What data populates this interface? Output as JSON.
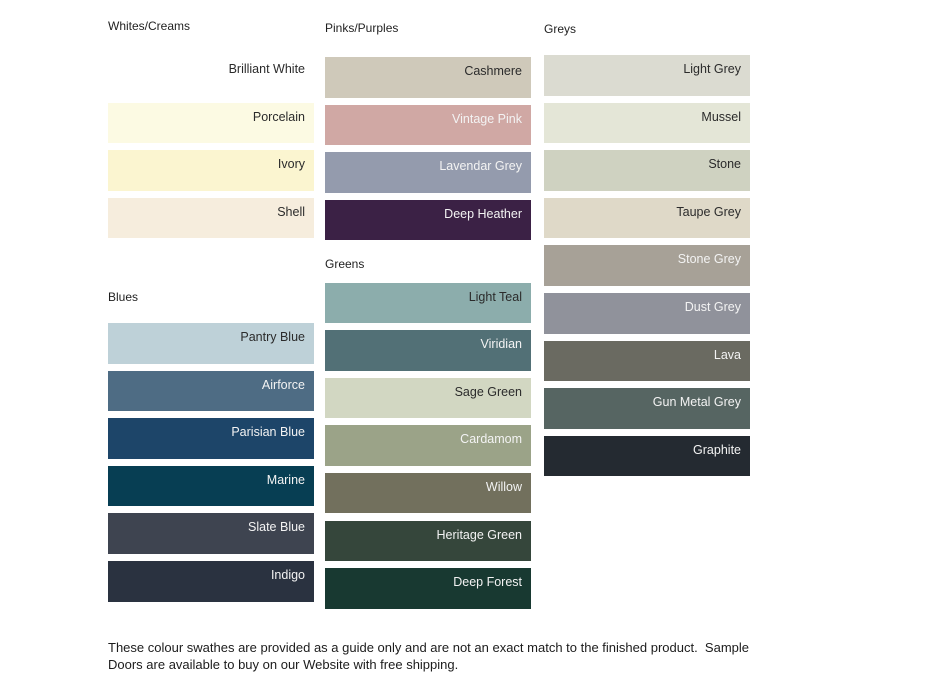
{
  "page": {
    "background": "#ffffff",
    "dark_label_color": "#2b2b2b",
    "light_label_color": "#f3f3f3"
  },
  "footer": {
    "line1": "These colour swathes are provided as a guide only and are not an exact match to the finished product.  Sample",
    "line2": "Doors are available to buy on our Website with free shipping."
  },
  "sections": [
    {
      "id": "whites-creams",
      "title": "Whites/Creams",
      "column": 1,
      "swatches": [
        {
          "name": "Brilliant White",
          "color": "#ffffff",
          "text": "dark"
        },
        {
          "name": "Porcelain",
          "color": "#fcfae3",
          "text": "dark"
        },
        {
          "name": "Ivory",
          "color": "#fbf5d0",
          "text": "dark"
        },
        {
          "name": "Shell",
          "color": "#f6eddd",
          "text": "dark"
        }
      ]
    },
    {
      "id": "blues",
      "title": "Blues",
      "column": 1,
      "swatches": [
        {
          "name": "Pantry Blue",
          "color": "#bed1d8",
          "text": "dark"
        },
        {
          "name": "Airforce",
          "color": "#4e6c84",
          "text": "light"
        },
        {
          "name": "Parisian Blue",
          "color": "#1d4569",
          "text": "light"
        },
        {
          "name": "Marine",
          "color": "#073e53",
          "text": "light"
        },
        {
          "name": "Slate Blue",
          "color": "#3e4450",
          "text": "light"
        },
        {
          "name": "Indigo",
          "color": "#2a3240",
          "text": "light"
        }
      ]
    },
    {
      "id": "pinks-purples",
      "title": "Pinks/Purples",
      "column": 2,
      "swatches": [
        {
          "name": "Cashmere",
          "color": "#cfc9ba",
          "text": "dark"
        },
        {
          "name": "Vintage Pink",
          "color": "#d0a8a4",
          "text": "light"
        },
        {
          "name": "Lavendar Grey",
          "color": "#949bad",
          "text": "light"
        },
        {
          "name": "Deep Heather",
          "color": "#3b2145",
          "text": "light"
        }
      ]
    },
    {
      "id": "greens",
      "title": "Greens",
      "column": 2,
      "swatches": [
        {
          "name": "Light Teal",
          "color": "#8cadac",
          "text": "dark"
        },
        {
          "name": "Viridian",
          "color": "#527076",
          "text": "light"
        },
        {
          "name": "Sage Green",
          "color": "#d2d7c2",
          "text": "dark"
        },
        {
          "name": "Cardamom",
          "color": "#9ba388",
          "text": "light"
        },
        {
          "name": "Willow",
          "color": "#72705d",
          "text": "light"
        },
        {
          "name": "Heritage Green",
          "color": "#35463b",
          "text": "light"
        },
        {
          "name": "Deep Forest",
          "color": "#183931",
          "text": "light"
        }
      ]
    },
    {
      "id": "greys",
      "title": "Greys",
      "column": 3,
      "swatches": [
        {
          "name": "Light Grey",
          "color": "#dbdbd1",
          "text": "dark"
        },
        {
          "name": "Mussel",
          "color": "#e4e6d7",
          "text": "dark"
        },
        {
          "name": "Stone",
          "color": "#cfd2c1",
          "text": "dark"
        },
        {
          "name": "Taupe Grey",
          "color": "#dfd9c8",
          "text": "dark"
        },
        {
          "name": "Stone Grey",
          "color": "#a7a197",
          "text": "light"
        },
        {
          "name": "Dust Grey",
          "color": "#90929b",
          "text": "light"
        },
        {
          "name": "Lava",
          "color": "#6a6a61",
          "text": "light"
        },
        {
          "name": "Gun Metal Grey",
          "color": "#566562",
          "text": "light"
        },
        {
          "name": "Graphite",
          "color": "#242a31",
          "text": "light"
        }
      ]
    }
  ]
}
